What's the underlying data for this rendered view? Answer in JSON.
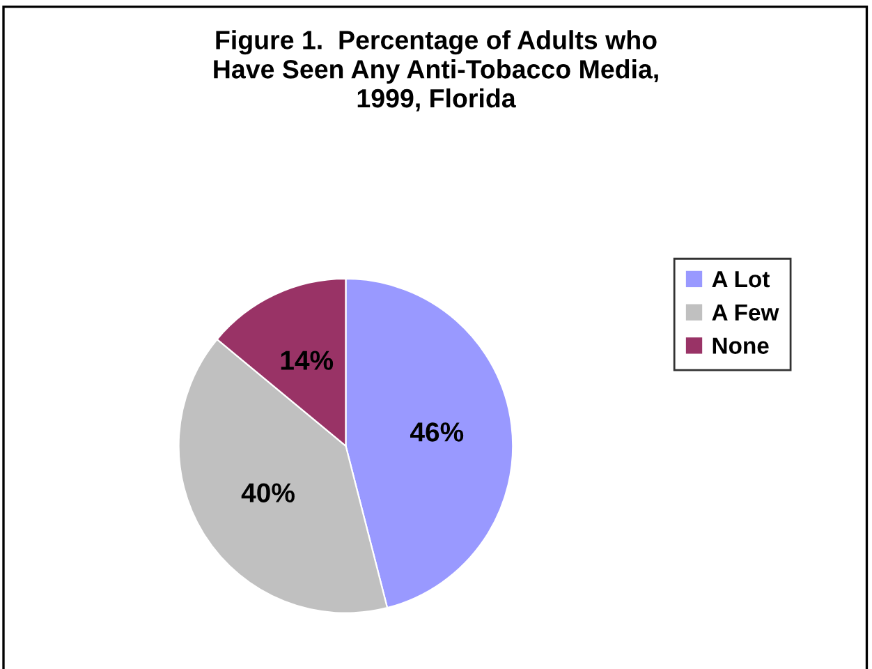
{
  "chart_data": {
    "type": "pie",
    "title": "Figure 1.  Percentage of Adults who\nHave Seen Any Anti-Tobacco Media,\n1999, Florida",
    "categories": [
      "A Lot",
      "A Few",
      "None"
    ],
    "values": [
      46,
      40,
      14
    ],
    "colors": [
      "#9999ff",
      "#c0c0c0",
      "#993366"
    ],
    "value_labels": [
      "46%",
      "40%",
      "14%"
    ],
    "legend": "right"
  }
}
